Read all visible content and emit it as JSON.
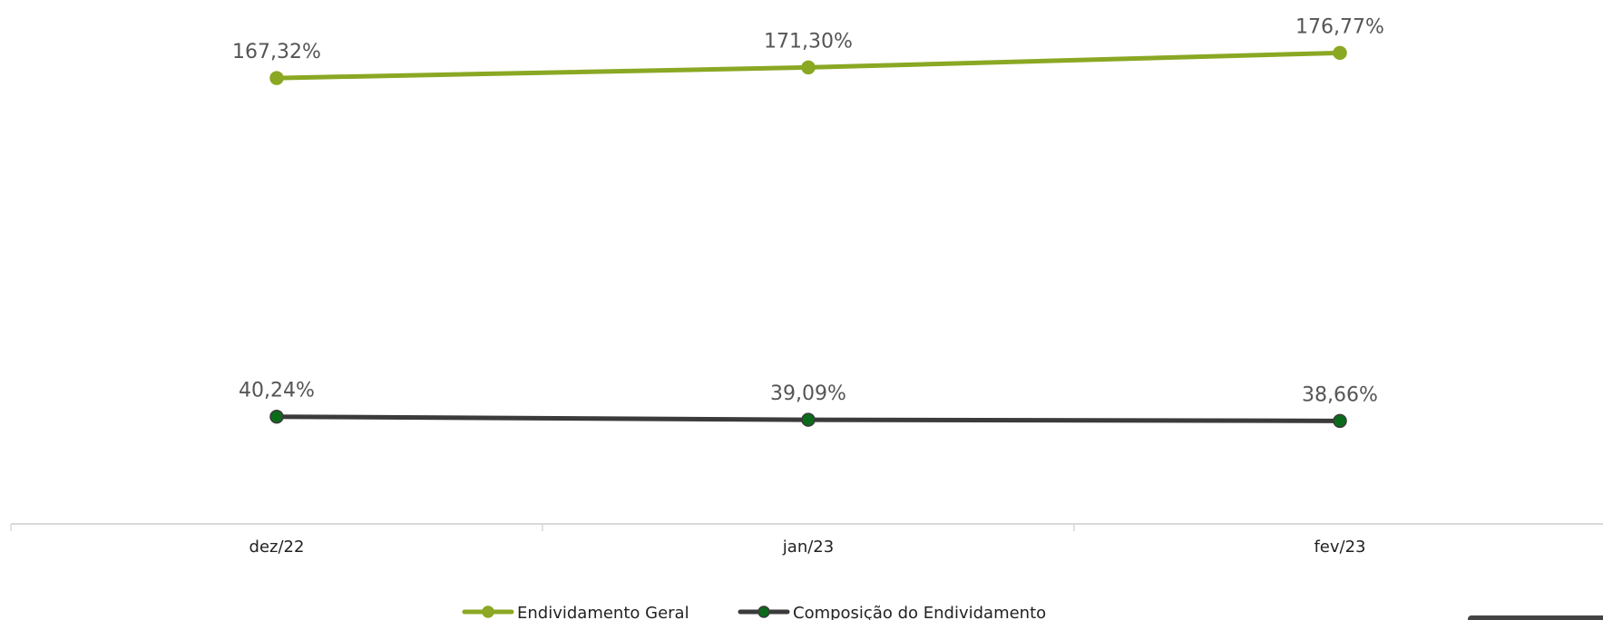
{
  "chart_data": {
    "type": "line",
    "categories": [
      "dez/22",
      "jan/23",
      "fev/23"
    ],
    "series": [
      {
        "name": "Endividamento Geral",
        "values": [
          167.32,
          171.3,
          176.77
        ],
        "labels": [
          "167,32%",
          "171,30%",
          "176,77%"
        ],
        "color": "#8aa823",
        "marker_color": "#8aa823"
      },
      {
        "name": "Composição do Endividamento",
        "values": [
          40.24,
          39.09,
          38.66
        ],
        "labels": [
          "40,24%",
          "39,09%",
          "38,66%"
        ],
        "color": "#3b3b3b",
        "marker_color": "#0b6b1a"
      }
    ],
    "ylim": [
      0,
      183
    ],
    "grid": false,
    "legend": "bottom-center",
    "axis_color": "#d9d9d9"
  }
}
